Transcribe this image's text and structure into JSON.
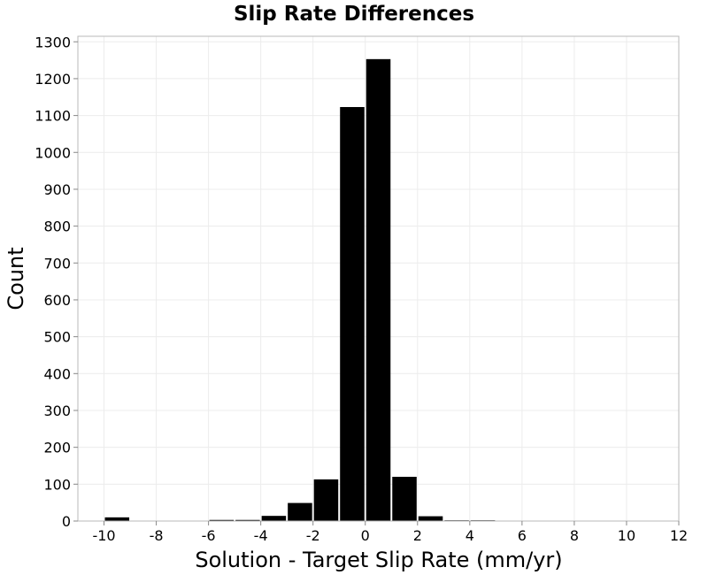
{
  "chart_data": {
    "type": "bar",
    "title": "Slip Rate Differences",
    "xlabel": "Solution - Target Slip Rate (mm/yr)",
    "ylabel": "Count",
    "xlim": [
      -11,
      12
    ],
    "ylim": [
      0,
      1315
    ],
    "x_ticks": [
      -10,
      -8,
      -6,
      -4,
      -2,
      0,
      2,
      4,
      6,
      8,
      10,
      12
    ],
    "y_ticks": [
      0,
      100,
      200,
      300,
      400,
      500,
      600,
      700,
      800,
      900,
      1000,
      1100,
      1200,
      1300
    ],
    "grid": true,
    "bin_width": 1,
    "bins": [
      {
        "x": -9.5,
        "value": 10
      },
      {
        "x": -5.5,
        "value": 3
      },
      {
        "x": -4.5,
        "value": 3
      },
      {
        "x": -3.5,
        "value": 14
      },
      {
        "x": -2.5,
        "value": 49
      },
      {
        "x": -1.5,
        "value": 113
      },
      {
        "x": -0.5,
        "value": 1123
      },
      {
        "x": 0.5,
        "value": 1253
      },
      {
        "x": 1.5,
        "value": 120
      },
      {
        "x": 2.5,
        "value": 13
      },
      {
        "x": 3.5,
        "value": 2
      },
      {
        "x": 4.5,
        "value": 2
      },
      {
        "x": 10.5,
        "value": 1
      }
    ],
    "colors": {
      "bar": "#000000",
      "grid": "#ececec",
      "border": "#b8b8b8"
    }
  }
}
